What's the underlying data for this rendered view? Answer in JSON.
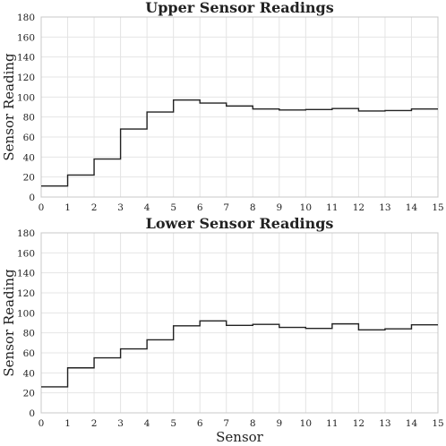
{
  "chart_data": [
    {
      "type": "line",
      "drawstyle": "steps",
      "title": "Upper Sensor Readings",
      "xlabel": "",
      "ylabel": "Sensor Reading",
      "xlim": [
        0,
        15
      ],
      "ylim": [
        0,
        180
      ],
      "xticks": [
        0,
        1,
        2,
        3,
        4,
        5,
        6,
        7,
        8,
        9,
        10,
        11,
        12,
        13,
        14,
        15
      ],
      "yticks": [
        0,
        20,
        40,
        60,
        80,
        100,
        120,
        140,
        160,
        180
      ],
      "grid": true,
      "edges": [
        0,
        1,
        2,
        3,
        4,
        5,
        6,
        7,
        8,
        9,
        10,
        11,
        12,
        13,
        14,
        15
      ],
      "values": [
        11,
        22,
        38,
        68,
        85,
        97,
        94,
        91,
        88,
        87,
        87.5,
        88.5,
        86,
        86.5,
        88
      ]
    },
    {
      "type": "line",
      "drawstyle": "steps",
      "title": "Lower Sensor Readings",
      "xlabel": "Sensor",
      "ylabel": "Sensor Reading",
      "xlim": [
        0,
        15
      ],
      "ylim": [
        0,
        180
      ],
      "xticks": [
        0,
        1,
        2,
        3,
        4,
        5,
        6,
        7,
        8,
        9,
        10,
        11,
        12,
        13,
        14,
        15
      ],
      "yticks": [
        0,
        20,
        40,
        60,
        80,
        100,
        120,
        140,
        160,
        180
      ],
      "grid": true,
      "edges": [
        0,
        1,
        2,
        3,
        4,
        5,
        6,
        7,
        8,
        9,
        10,
        11,
        12,
        13,
        14,
        15
      ],
      "values": [
        26,
        45,
        55,
        64,
        73,
        87,
        92,
        87.5,
        88.5,
        85.5,
        84.5,
        89,
        83,
        84,
        88
      ]
    }
  ]
}
